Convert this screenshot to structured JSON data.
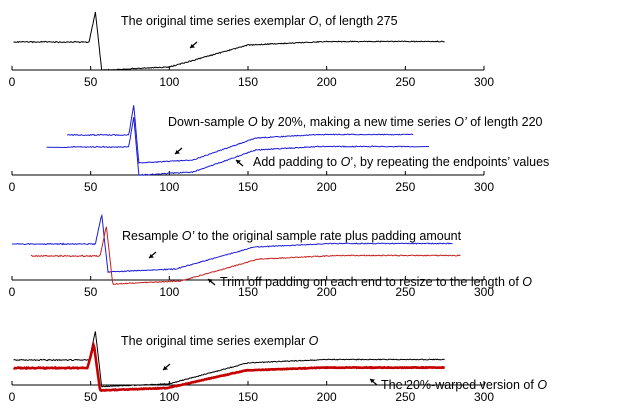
{
  "colors": {
    "original": "#000000",
    "downsampled": "#1c1cd6",
    "resampled_red": "#c62020",
    "warped": "#c40000",
    "arrow": "#000000"
  },
  "chart_data": [
    {
      "type": "line",
      "xlim": [
        0,
        300
      ],
      "xticks": [
        0,
        50,
        100,
        150,
        200,
        250,
        300
      ],
      "series": [
        {
          "color": "#000000",
          "x_start": 1,
          "x_end": 275
        }
      ],
      "annotations": [
        {
          "segments": [
            {
              "text": "The original time series exemplar ",
              "italic": false
            },
            {
              "text": "O",
              "italic": true
            },
            {
              "text": ", of length 275",
              "italic": false
            }
          ]
        }
      ]
    },
    {
      "type": "line",
      "xlim": [
        0,
        300
      ],
      "xticks": [
        0,
        50,
        100,
        150,
        200,
        250,
        300
      ],
      "series": [
        {
          "color": "#1c1cd6",
          "x_start": 35,
          "x_end": 255
        },
        {
          "color": "#1c1cd6",
          "x_start": 22,
          "x_end": 265
        }
      ],
      "annotations": [
        {
          "segments": [
            {
              "text": "Down-sample ",
              "italic": false
            },
            {
              "text": "O",
              "italic": true
            },
            {
              "text": " by 20%, making a new time series ",
              "italic": false
            },
            {
              "text": "O’",
              "italic": true
            },
            {
              "text": " of length 220",
              "italic": false
            }
          ]
        },
        {
          "segments": [
            {
              "text": "Add padding to ",
              "italic": false
            },
            {
              "text": "O",
              "italic": true
            },
            {
              "text": "’, by repeating the endpoints’ values",
              "italic": false
            }
          ]
        }
      ]
    },
    {
      "type": "line",
      "xlim": [
        0,
        300
      ],
      "xticks": [
        0,
        50,
        100,
        150,
        200,
        250,
        300
      ],
      "series": [
        {
          "color": "#1c1cd6",
          "x_start": 0,
          "x_end": 280
        },
        {
          "color": "#c62020",
          "x_start": 10,
          "x_end": 285
        }
      ],
      "annotations": [
        {
          "segments": [
            {
              "text": "Resample ",
              "italic": false
            },
            {
              "text": "O’",
              "italic": true
            },
            {
              "text": " to the original sample rate plus padding amount",
              "italic": false
            }
          ]
        },
        {
          "segments": [
            {
              "text": "Trim off padding on each end to resize to the length of ",
              "italic": false
            },
            {
              "text": "O",
              "italic": true
            }
          ]
        }
      ]
    },
    {
      "type": "line",
      "xlim": [
        0,
        300
      ],
      "xticks": [
        0,
        50,
        100,
        150,
        200,
        250,
        300
      ],
      "series": [
        {
          "color": "#000000",
          "x_start": 1,
          "x_end": 275
        },
        {
          "color": "#c40000",
          "x_start": 1,
          "x_end": 275
        }
      ],
      "annotations": [
        {
          "segments": [
            {
              "text": "The original time series exemplar ",
              "italic": false
            },
            {
              "text": "O",
              "italic": true
            }
          ]
        },
        {
          "segments": [
            {
              "text": "The 20%-warped version of ",
              "italic": false
            },
            {
              "text": "O",
              "italic": true
            }
          ]
        }
      ]
    }
  ]
}
